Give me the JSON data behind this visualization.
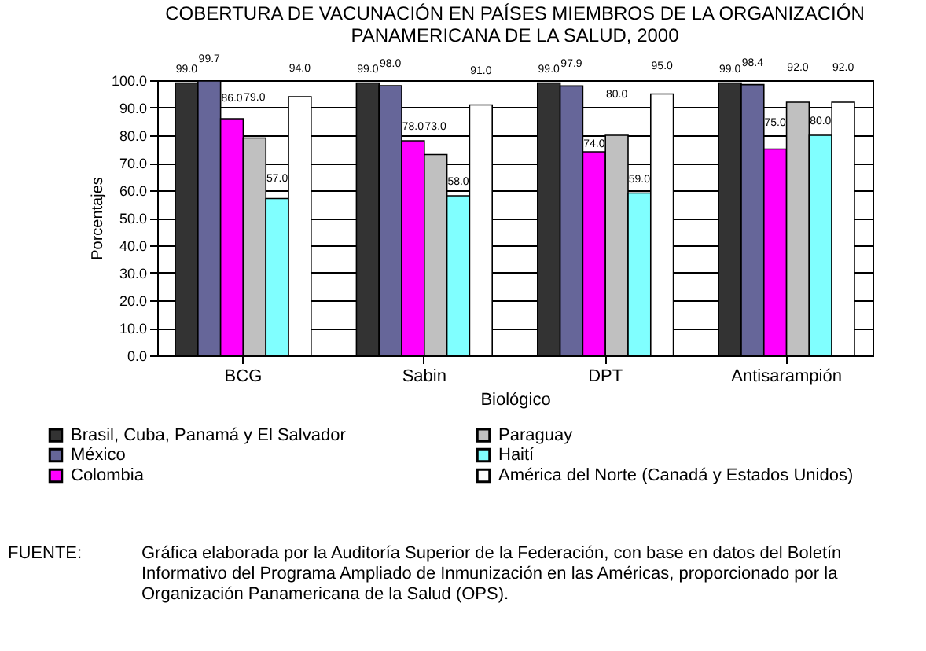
{
  "chart_data": {
    "type": "bar",
    "title": "COBERTURA DE VACUNACIÓN EN PAÍSES MIEMBROS DE LA ORGANIZACIÓN PANAMERICANA DE LA SALUD, 2000",
    "xlabel": "Biológico",
    "ylabel": "Porcentajes",
    "categories": [
      "BCG",
      "Sabin",
      "DPT",
      "Antisarampión"
    ],
    "series": [
      {
        "name": "Brasil, Cuba, Panamá y El Salvador",
        "color": "#333333",
        "values": [
          99.0,
          99.0,
          99.0,
          99.0
        ],
        "value_labels": [
          "99.0",
          "99.0",
          "99.0",
          "99.0"
        ]
      },
      {
        "name": "México",
        "color": "#666699",
        "values": [
          99.7,
          98.0,
          97.9,
          98.4
        ],
        "value_labels": [
          "99.7",
          "98.0",
          "97.9",
          "98.4"
        ]
      },
      {
        "name": "Colombia",
        "color": "#ff00ff",
        "values": [
          86.0,
          78.0,
          74.0,
          75.0
        ],
        "value_labels": [
          "86.0",
          "78.0",
          "74.0",
          "75.0"
        ]
      },
      {
        "name": "Paraguay",
        "color": "#c0c0c0",
        "values": [
          79.0,
          73.0,
          80.0,
          92.0
        ],
        "value_labels": [
          "79.0",
          "73.0",
          "80.0",
          "92.0"
        ]
      },
      {
        "name": "Haití",
        "color": "#80ffff",
        "values": [
          57.0,
          58.0,
          59.0,
          80.0
        ],
        "value_labels": [
          "57.0",
          "58.0",
          "59.0",
          "80.0"
        ]
      },
      {
        "name": "América del Norte (Canadá y Estados Unidos)",
        "color": "#ffffff",
        "values": [
          94.0,
          91.0,
          95.0,
          92.0
        ],
        "value_labels": [
          "94.0",
          "91.0",
          "95.0",
          "92.0"
        ]
      }
    ],
    "ylim": [
      0,
      100
    ],
    "yticks": [
      {
        "value": 0,
        "label": "0.0"
      },
      {
        "value": 10,
        "label": "10.0"
      },
      {
        "value": 20,
        "label": "20.0"
      },
      {
        "value": 30,
        "label": "30.0"
      },
      {
        "value": 40,
        "label": "40.0"
      },
      {
        "value": 50,
        "label": "50.0"
      },
      {
        "value": 60,
        "label": "60.0"
      },
      {
        "value": 70,
        "label": "70.0"
      },
      {
        "value": 80,
        "label": "80.0"
      },
      {
        "value": 90,
        "label": "90.0"
      },
      {
        "value": 100,
        "label": "100.0"
      }
    ],
    "grid": "y",
    "legend": "bottom",
    "annotations": [
      "FUENTE:",
      "Gráfica elaborada por la Auditoría Superior de la Federación, con base en datos del Boletín Informativo del Programa Ampliado de Inmunización en las Américas, proporcionado por la Organización Panamericana de la Salud (OPS)."
    ]
  }
}
